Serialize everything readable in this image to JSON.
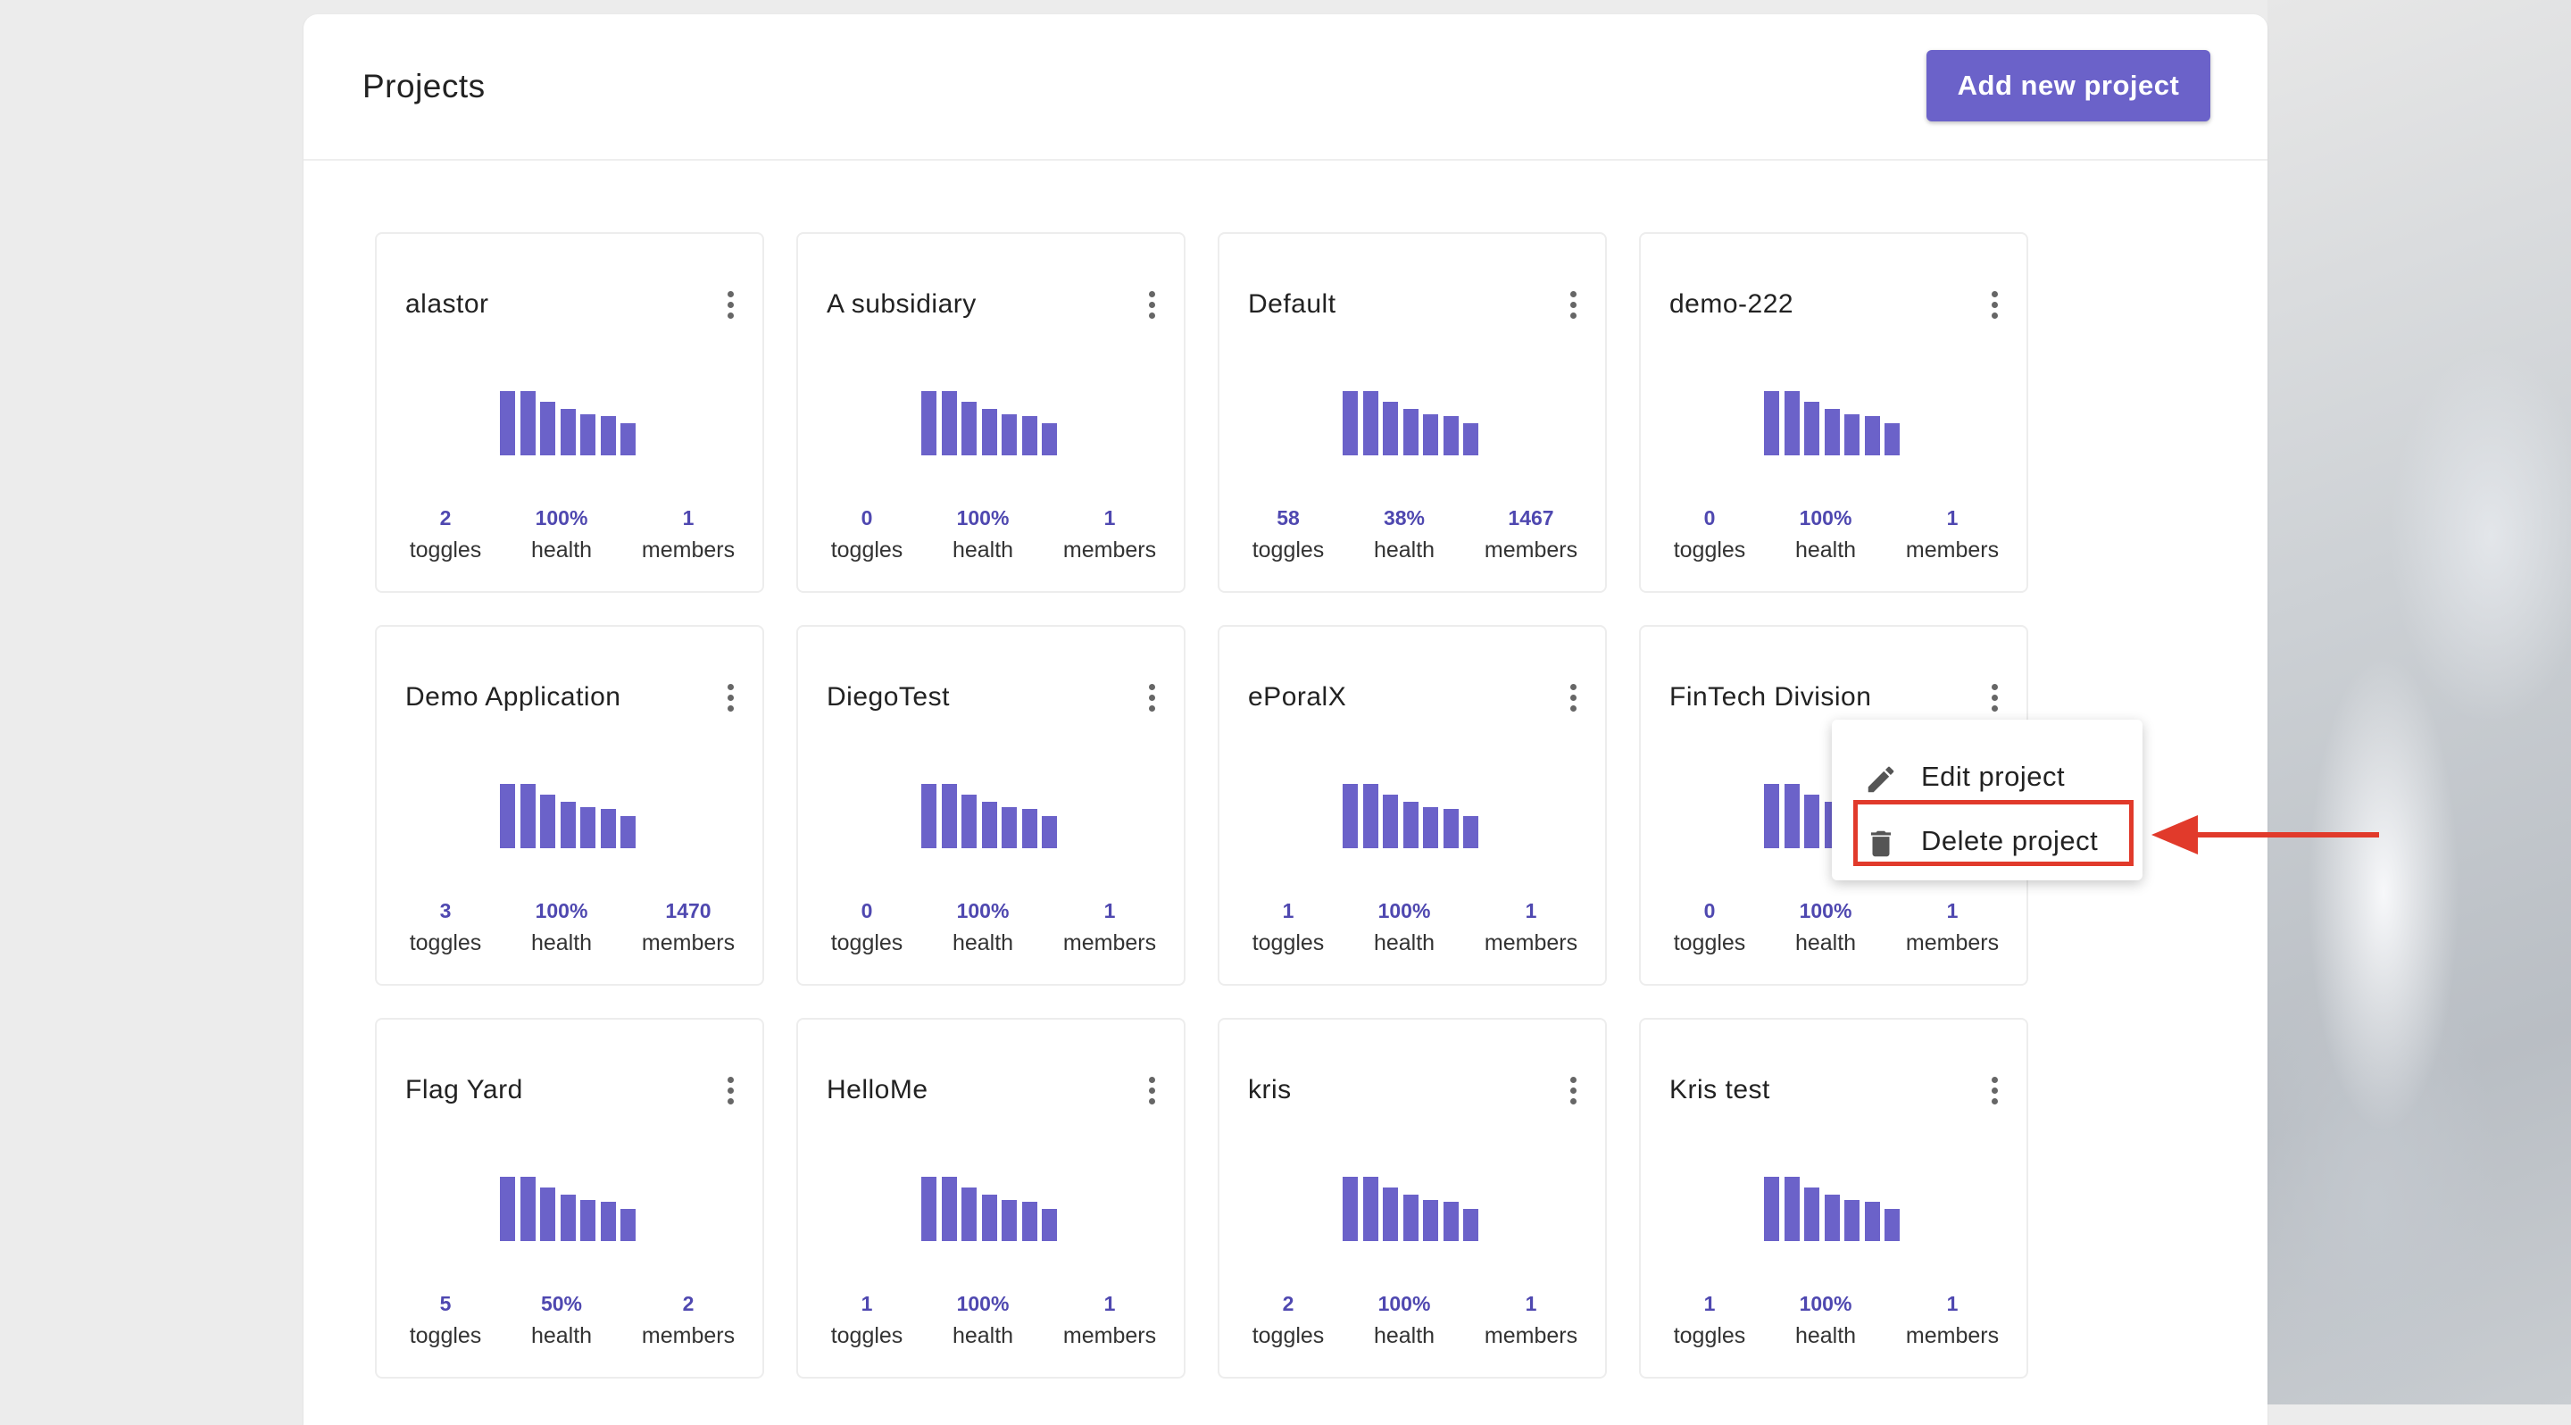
{
  "header": {
    "title": "Projects",
    "add_button": "Add new project"
  },
  "colors": {
    "accent": "#6b62c9",
    "stat_value": "#4f48b0",
    "annotation": "#e13a2b"
  },
  "projects": [
    {
      "name": "alastor",
      "toggles": "2",
      "health": "100%",
      "members": "1"
    },
    {
      "name": "A subsidiary",
      "toggles": "0",
      "health": "100%",
      "members": "1"
    },
    {
      "name": "Default",
      "toggles": "58",
      "health": "38%",
      "members": "1467"
    },
    {
      "name": "demo-222",
      "toggles": "0",
      "health": "100%",
      "members": "1"
    },
    {
      "name": "Demo Application",
      "toggles": "3",
      "health": "100%",
      "members": "1470"
    },
    {
      "name": "DiegoTest",
      "toggles": "0",
      "health": "100%",
      "members": "1"
    },
    {
      "name": "ePoralX",
      "toggles": "1",
      "health": "100%",
      "members": "1"
    },
    {
      "name": "FinTech Division",
      "toggles": "0",
      "health": "100%",
      "members": "1"
    },
    {
      "name": "Flag Yard",
      "toggles": "5",
      "health": "50%",
      "members": "2"
    },
    {
      "name": "HelloMe",
      "toggles": "1",
      "health": "100%",
      "members": "1"
    },
    {
      "name": "kris",
      "toggles": "2",
      "health": "100%",
      "members": "1"
    },
    {
      "name": "Kris test",
      "toggles": "1",
      "health": "100%",
      "members": "1"
    }
  ],
  "stat_labels": {
    "toggles": "toggles",
    "health": "health",
    "members": "members"
  },
  "context_menu": {
    "edit": "Edit project",
    "delete": "Delete project"
  },
  "icons": {
    "menu": "kebab-vertical-icon",
    "edit": "pencil-icon",
    "delete": "trash-icon"
  }
}
